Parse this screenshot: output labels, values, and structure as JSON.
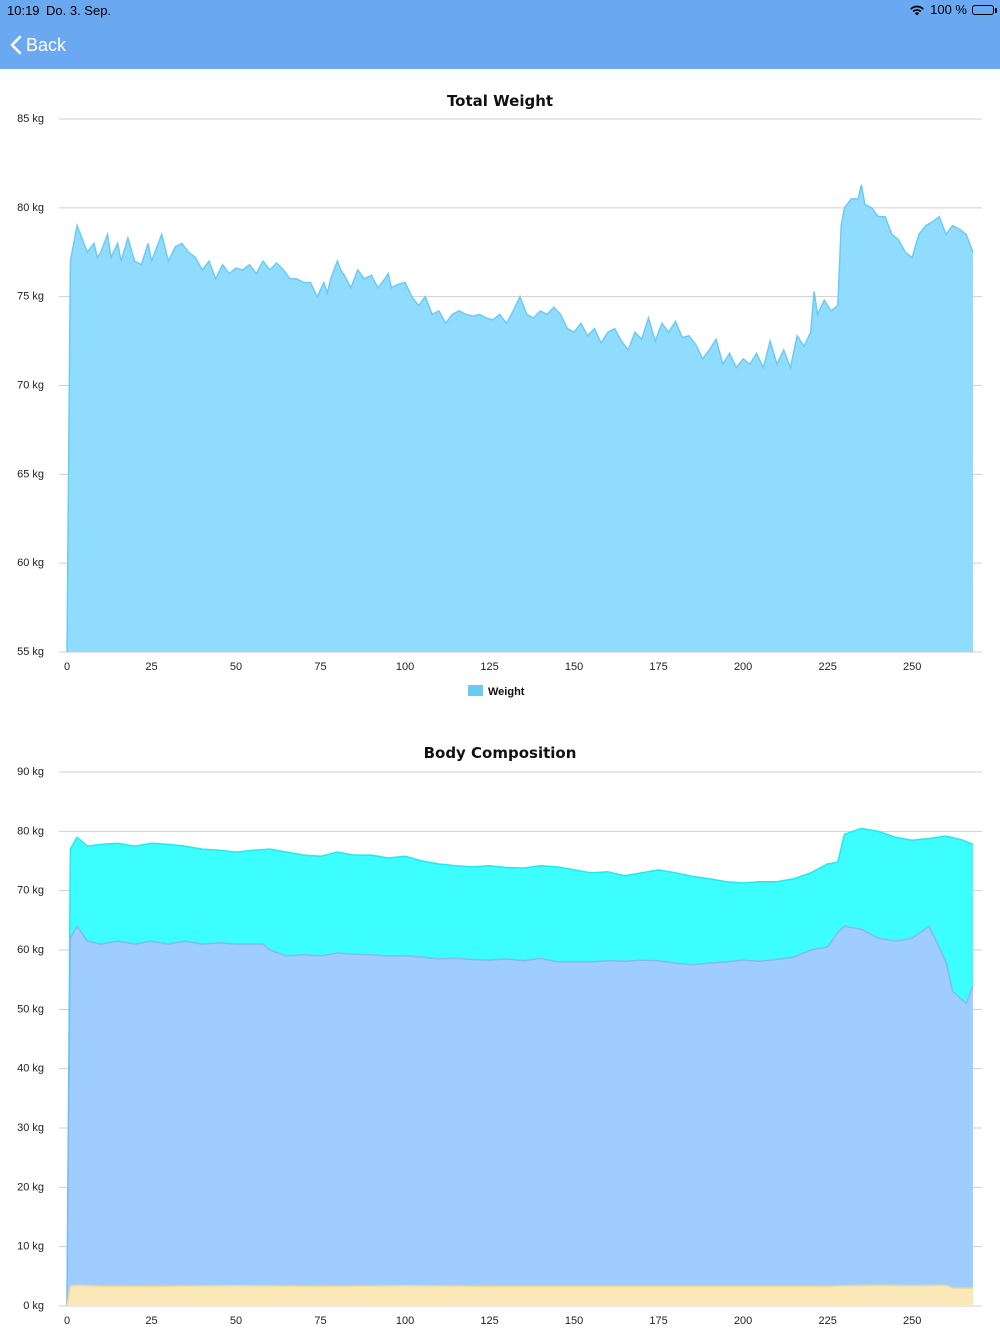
{
  "status": {
    "time": "10:19",
    "date": "Do. 3. Sep.",
    "battery": "100 %"
  },
  "nav": {
    "back_label": "Back"
  },
  "chart_data": [
    {
      "type": "area",
      "title": "Total Weight",
      "y_unit": "kg",
      "ylim": [
        55,
        85
      ],
      "yticks": [
        "55 kg",
        "60 kg",
        "65 kg",
        "70 kg",
        "75 kg",
        "80 kg",
        "85 kg"
      ],
      "yvals": [
        55,
        60,
        65,
        70,
        75,
        80,
        85
      ],
      "xlim": [
        0,
        268
      ],
      "xticks": [
        0,
        25,
        50,
        75,
        100,
        125,
        150,
        175,
        200,
        225,
        250
      ],
      "grid": true,
      "legend": "bottom-center",
      "series": [
        {
          "name": "Weight",
          "color": "#8fdcff",
          "stroke": "#6ccbf5",
          "x": [
            0,
            1,
            3,
            6,
            8,
            9,
            10,
            12,
            13,
            15,
            16,
            18,
            20,
            22,
            24,
            25,
            26,
            28,
            30,
            32,
            34,
            36,
            38,
            40,
            42,
            44,
            46,
            48,
            50,
            52,
            54,
            56,
            58,
            60,
            62,
            64,
            66,
            68,
            70,
            72,
            74,
            76,
            77,
            78,
            80,
            81,
            82,
            84,
            86,
            88,
            90,
            92,
            94,
            95,
            96,
            98,
            100,
            102,
            104,
            106,
            108,
            110,
            112,
            114,
            116,
            118,
            120,
            122,
            124,
            126,
            128,
            130,
            132,
            134,
            136,
            138,
            140,
            142,
            144,
            146,
            148,
            150,
            152,
            154,
            156,
            158,
            160,
            162,
            164,
            166,
            168,
            170,
            172,
            174,
            176,
            178,
            180,
            182,
            184,
            186,
            188,
            190,
            192,
            194,
            196,
            198,
            200,
            202,
            204,
            206,
            208,
            210,
            212,
            214,
            216,
            218,
            220,
            221,
            222,
            224,
            226,
            228,
            229,
            230,
            232,
            234,
            235,
            236,
            238,
            240,
            242,
            244,
            246,
            248,
            250,
            252,
            254,
            256,
            258,
            260,
            262,
            264,
            266,
            268
          ],
          "y": [
            55,
            77,
            79,
            77.5,
            78,
            77.2,
            77.5,
            78.5,
            77.2,
            78,
            77,
            78.3,
            77,
            76.8,
            78,
            77,
            77.5,
            78.5,
            77,
            77.8,
            78,
            77.5,
            77.2,
            76.5,
            77,
            76,
            76.8,
            76.3,
            76.6,
            76.5,
            76.8,
            76.3,
            77,
            76.5,
            76.9,
            76.5,
            76,
            76,
            75.8,
            75.8,
            75,
            75.8,
            75.2,
            76,
            77,
            76.5,
            76.2,
            75.5,
            76.5,
            76,
            76.2,
            75.5,
            76,
            76.3,
            75.5,
            75.7,
            75.8,
            75,
            74.5,
            75,
            74,
            74.2,
            73.5,
            74,
            74.2,
            74,
            73.9,
            74,
            73.8,
            73.7,
            74,
            73.5,
            74.2,
            75,
            74,
            73.8,
            74.2,
            74,
            74.4,
            74,
            73.2,
            73,
            73.5,
            72.8,
            73.2,
            72.4,
            73,
            73.2,
            72.5,
            72,
            73,
            72.6,
            73.8,
            72.5,
            73.5,
            73,
            73.6,
            72.7,
            72.8,
            72.3,
            71.5,
            72,
            72.6,
            71.2,
            71.8,
            71,
            71.5,
            71.2,
            71.8,
            71,
            72.5,
            71.2,
            72,
            71,
            72.8,
            72.2,
            73,
            75.3,
            74,
            74.8,
            74.2,
            74.5,
            79,
            80,
            80.5,
            80.5,
            81.3,
            80.2,
            80,
            79.5,
            79.5,
            78.5,
            78.2,
            77.5,
            77.2,
            78.5,
            79,
            79.2,
            79.5,
            78.5,
            79,
            78.8,
            78.5,
            77.5
          ]
        }
      ]
    },
    {
      "type": "area",
      "title": "Body Composition",
      "y_unit": "kg",
      "ylim": [
        0,
        90
      ],
      "yticks": [
        "0 kg",
        "10 kg",
        "20 kg",
        "30 kg",
        "40 kg",
        "50 kg",
        "60 kg",
        "70 kg",
        "80 kg",
        "90 kg"
      ],
      "yvals": [
        0,
        10,
        20,
        30,
        40,
        50,
        60,
        70,
        80,
        90
      ],
      "xlim": [
        0,
        268
      ],
      "xticks": [
        0,
        25,
        50,
        75,
        100,
        125,
        150,
        175,
        200,
        225,
        250
      ],
      "grid": true,
      "series": [
        {
          "color": "#3cfefe",
          "stroke": "#22e8f0",
          "x": [
            0,
            1,
            3,
            6,
            10,
            15,
            20,
            25,
            30,
            35,
            40,
            45,
            50,
            55,
            60,
            65,
            70,
            75,
            80,
            85,
            90,
            95,
            100,
            105,
            110,
            115,
            120,
            125,
            130,
            135,
            140,
            145,
            150,
            155,
            160,
            165,
            170,
            175,
            180,
            185,
            190,
            195,
            200,
            205,
            210,
            215,
            220,
            225,
            228,
            230,
            235,
            240,
            245,
            250,
            255,
            260,
            265,
            268
          ],
          "y": [
            0,
            77,
            79,
            77.5,
            77.8,
            78,
            77.5,
            78,
            77.8,
            77.5,
            77,
            76.8,
            76.5,
            76.8,
            77,
            76.5,
            76,
            75.8,
            76.5,
            76,
            76,
            75.5,
            75.8,
            75,
            74.5,
            74.2,
            74,
            74.2,
            73.9,
            73.8,
            74.2,
            74,
            73.5,
            73,
            73.2,
            72.5,
            73,
            73.5,
            73,
            72.4,
            72,
            71.5,
            71.3,
            71.5,
            71.5,
            72,
            73,
            74.5,
            74.8,
            79.5,
            80.5,
            80,
            79,
            78.5,
            78.8,
            79.2,
            78.5,
            77.8
          ]
        },
        {
          "color": "#a0cdff",
          "stroke": "#86b8f0",
          "x": [
            0,
            1,
            3,
            6,
            10,
            15,
            20,
            25,
            30,
            35,
            40,
            45,
            50,
            55,
            58,
            60,
            65,
            70,
            75,
            80,
            85,
            90,
            95,
            100,
            105,
            110,
            115,
            120,
            125,
            130,
            135,
            140,
            145,
            150,
            155,
            160,
            165,
            170,
            175,
            180,
            185,
            190,
            195,
            200,
            205,
            210,
            215,
            220,
            225,
            228,
            230,
            235,
            240,
            245,
            250,
            255,
            260,
            262,
            264,
            266,
            268
          ],
          "y": [
            0,
            62,
            64,
            61.5,
            61,
            61.5,
            61,
            61.5,
            61,
            61.5,
            61,
            61.2,
            61,
            61,
            61,
            60,
            59,
            59.2,
            59,
            59.5,
            59.3,
            59.2,
            59,
            59,
            58.8,
            58.5,
            58.6,
            58.4,
            58.3,
            58.5,
            58.2,
            58.6,
            58,
            58,
            58,
            58.2,
            58.1,
            58.3,
            58.2,
            57.8,
            57.5,
            57.8,
            58,
            58.3,
            58.1,
            58.4,
            58.8,
            60,
            60.5,
            63,
            64,
            63.5,
            62,
            61.5,
            62,
            64,
            58,
            53,
            52,
            51,
            54
          ]
        },
        {
          "color": "#fbe8b8",
          "stroke": "#f5d98f",
          "x": [
            0,
            1,
            3,
            10,
            25,
            50,
            75,
            100,
            125,
            150,
            175,
            200,
            225,
            230,
            240,
            250,
            260,
            262,
            268
          ],
          "y": [
            0,
            3.3,
            3.5,
            3.3,
            3.3,
            3.4,
            3.3,
            3.4,
            3.3,
            3.3,
            3.3,
            3.3,
            3.3,
            3.4,
            3.5,
            3.4,
            3.5,
            3,
            3
          ]
        }
      ]
    }
  ]
}
